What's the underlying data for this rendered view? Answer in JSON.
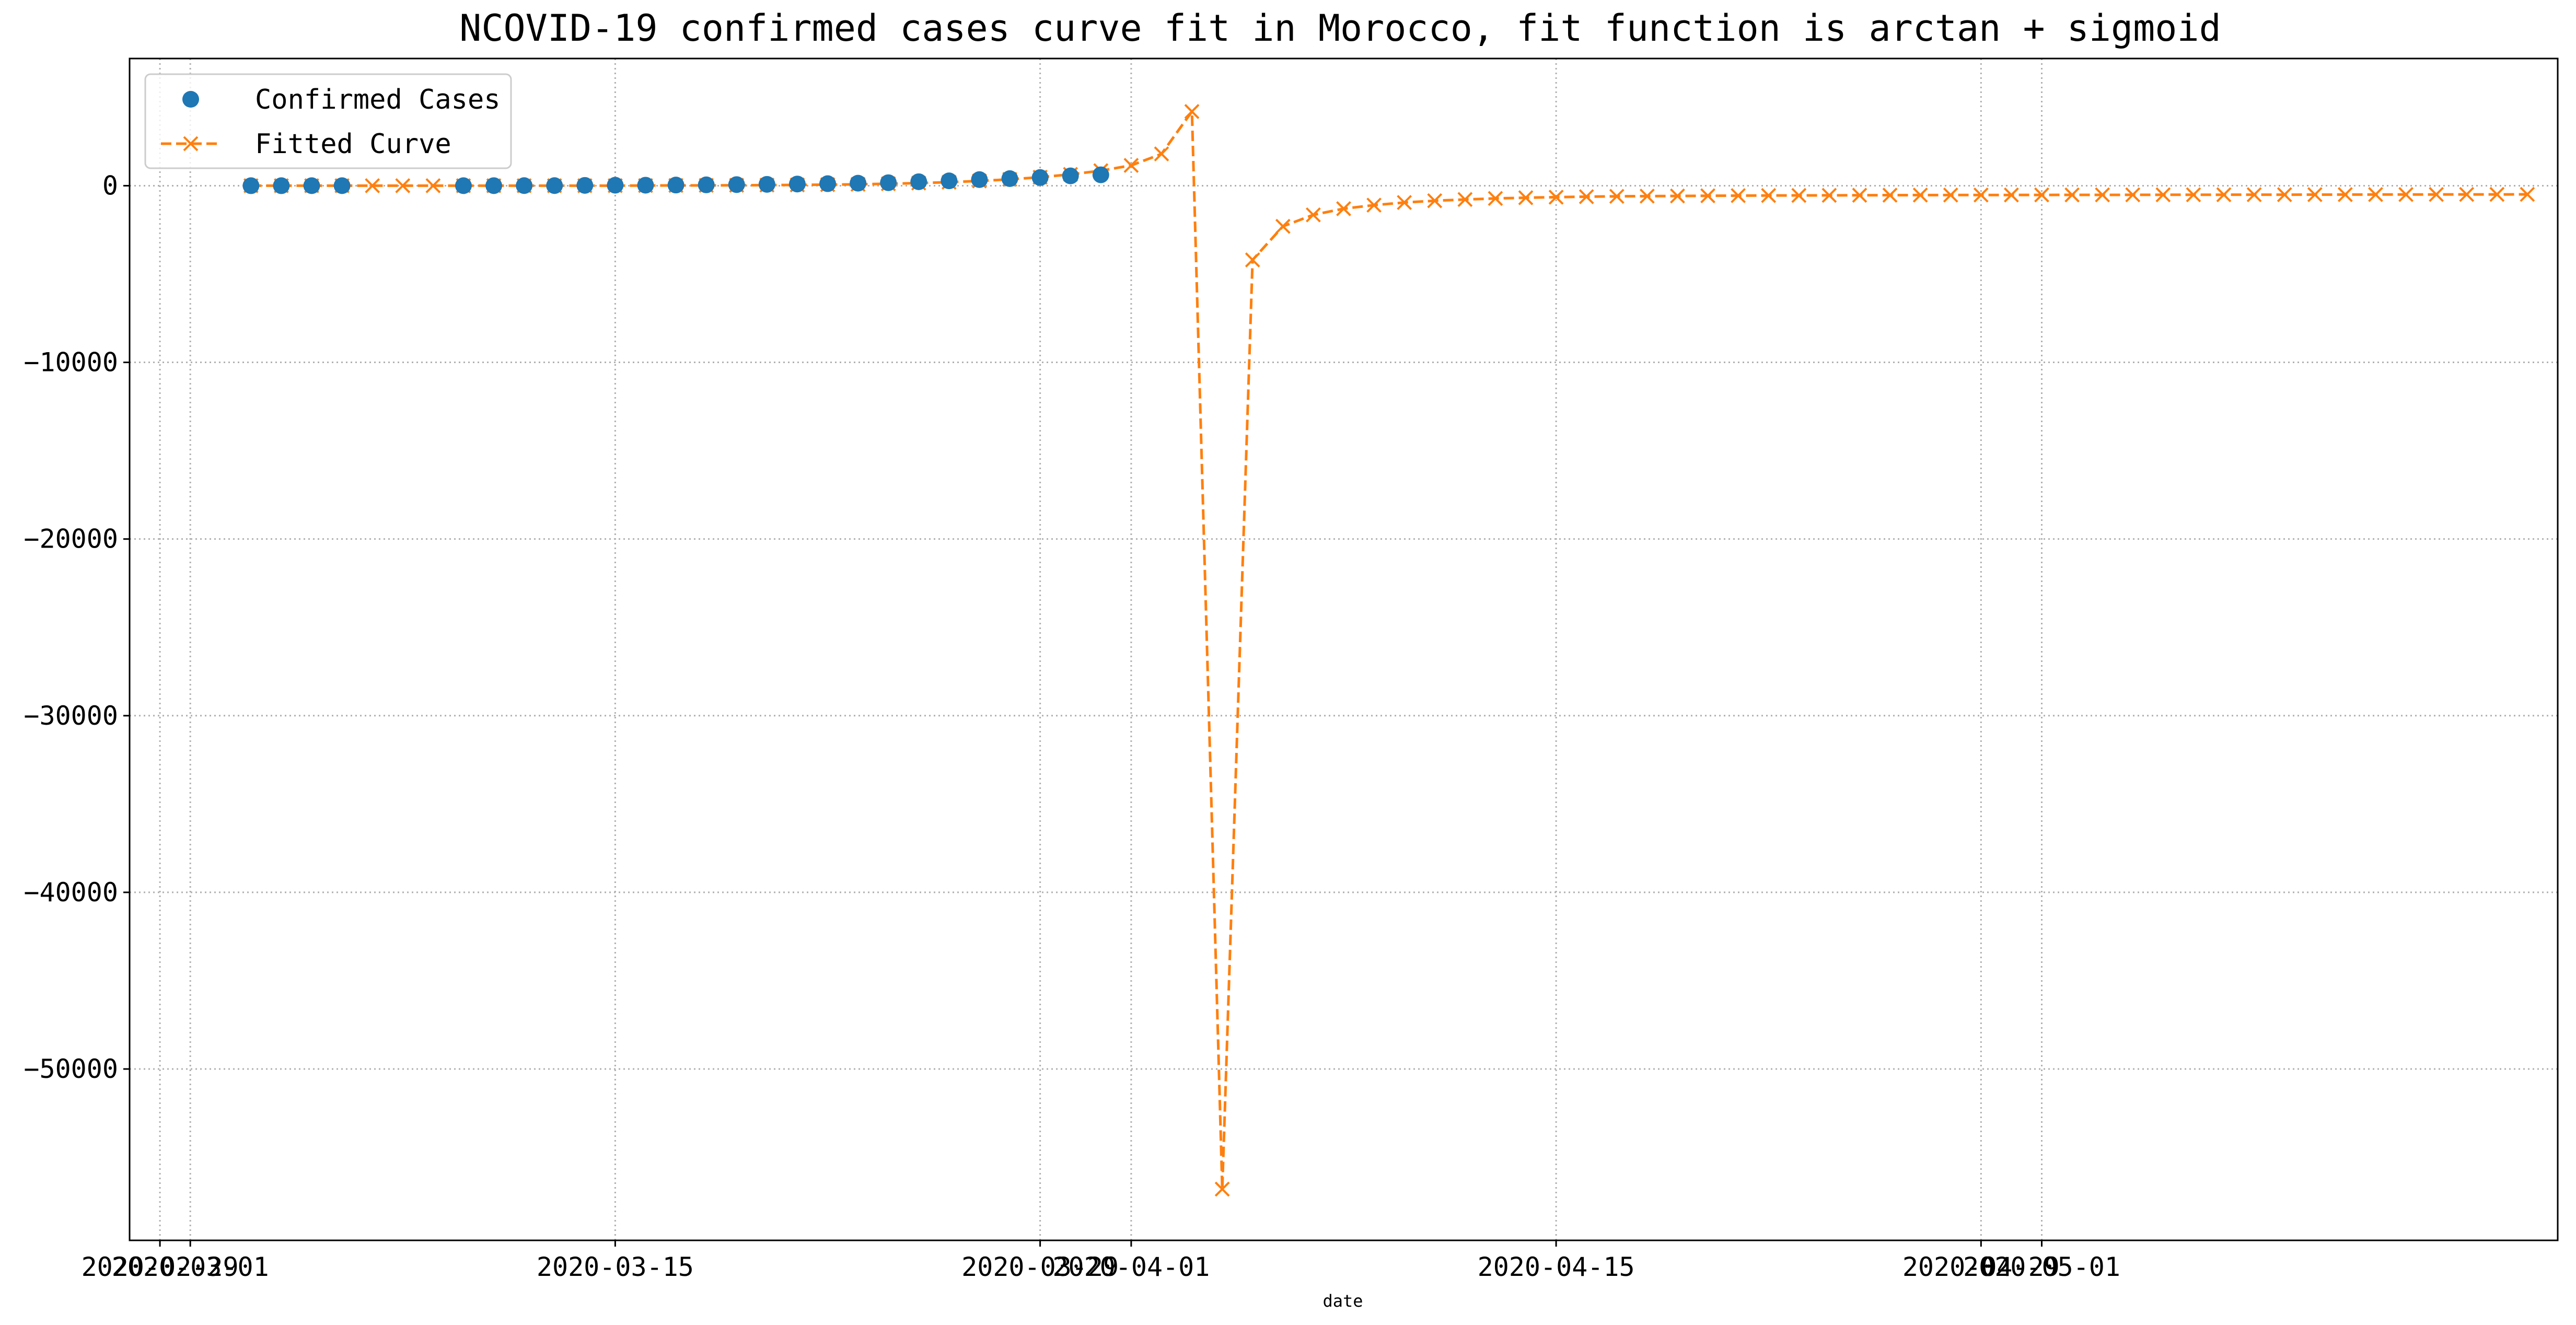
{
  "chart_data": {
    "type": "line",
    "title": "NCOVID-19 confirmed cases curve fit in Morocco, fit function is arctan + sigmoid",
    "xlabel": "date",
    "ylabel": "",
    "x_tick_labels": [
      "2020-02-29",
      "2020-03-01",
      "2020-03-15",
      "2020-03-29",
      "2020-04-01",
      "2020-04-15",
      "2020-04-29",
      "2020-05-01"
    ],
    "y_ticks": [
      0,
      -10000,
      -20000,
      -30000,
      -40000,
      -50000
    ],
    "y_tick_labels": [
      "0",
      "−10000",
      "−20000",
      "−30000",
      "−40000",
      "−50000"
    ],
    "xlim": [
      "2020-02-28",
      "2020-05-18"
    ],
    "ylim": [
      -59700,
      7200
    ],
    "grid": true,
    "legend_position": "upper left",
    "series": [
      {
        "name": "Confirmed Cases",
        "style": "markers",
        "marker": "circle",
        "color": "#1f77b4",
        "x": [
          "2020-03-03",
          "2020-03-04",
          "2020-03-05",
          "2020-03-06",
          "2020-03-10",
          "2020-03-11",
          "2020-03-12",
          "2020-03-13",
          "2020-03-14",
          "2020-03-15",
          "2020-03-16",
          "2020-03-17",
          "2020-03-18",
          "2020-03-19",
          "2020-03-20",
          "2020-03-21",
          "2020-03-22",
          "2020-03-23",
          "2020-03-24",
          "2020-03-25",
          "2020-03-26",
          "2020-03-27",
          "2020-03-28",
          "2020-03-29",
          "2020-03-30",
          "2020-03-31"
        ],
        "y": [
          1,
          1,
          2,
          2,
          2,
          3,
          5,
          6,
          18,
          28,
          29,
          38,
          49,
          63,
          77,
          96,
          115,
          143,
          170,
          225,
          275,
          345,
          402,
          463,
          556,
          617
        ]
      },
      {
        "name": "Fitted Curve",
        "style": "dashed-line",
        "marker": "x",
        "color": "#ff7f0e",
        "x": [
          "2020-03-03",
          "2020-03-04",
          "2020-03-05",
          "2020-03-06",
          "2020-03-07",
          "2020-03-08",
          "2020-03-09",
          "2020-03-10",
          "2020-03-11",
          "2020-03-12",
          "2020-03-13",
          "2020-03-14",
          "2020-03-15",
          "2020-03-16",
          "2020-03-17",
          "2020-03-18",
          "2020-03-19",
          "2020-03-20",
          "2020-03-21",
          "2020-03-22",
          "2020-03-23",
          "2020-03-24",
          "2020-03-25",
          "2020-03-26",
          "2020-03-27",
          "2020-03-28",
          "2020-03-29",
          "2020-03-30",
          "2020-03-31",
          "2020-04-01",
          "2020-04-02",
          "2020-04-03",
          "2020-04-04",
          "2020-04-05",
          "2020-04-06",
          "2020-04-07",
          "2020-04-08",
          "2020-04-09",
          "2020-04-10",
          "2020-04-11",
          "2020-04-12",
          "2020-04-13",
          "2020-04-14",
          "2020-04-15",
          "2020-04-16",
          "2020-04-17",
          "2020-04-18",
          "2020-04-19",
          "2020-04-20",
          "2020-04-21",
          "2020-04-22",
          "2020-04-23",
          "2020-04-24",
          "2020-04-25",
          "2020-04-26",
          "2020-04-27",
          "2020-04-28",
          "2020-04-29",
          "2020-04-30",
          "2020-05-01",
          "2020-05-02",
          "2020-05-03",
          "2020-05-04",
          "2020-05-05",
          "2020-05-06",
          "2020-05-07",
          "2020-05-08",
          "2020-05-09",
          "2020-05-10",
          "2020-05-11",
          "2020-05-12",
          "2020-05-13",
          "2020-05-14",
          "2020-05-15",
          "2020-05-16",
          "2020-05-17"
        ],
        "y": [
          0,
          0,
          0,
          0,
          0,
          0,
          0,
          0,
          0,
          0,
          0,
          0,
          5,
          10,
          15,
          20,
          25,
          35,
          45,
          60,
          80,
          110,
          150,
          200,
          270,
          360,
          480,
          640,
          850,
          1150,
          1800,
          4200,
          -56800,
          -4200,
          -2300,
          -1650,
          -1300,
          -1100,
          -950,
          -850,
          -780,
          -720,
          -680,
          -650,
          -620,
          -600,
          -590,
          -580,
          -570,
          -560,
          -555,
          -550,
          -545,
          -540,
          -535,
          -530,
          -528,
          -526,
          -524,
          -522,
          -520,
          -518,
          -516,
          -514,
          -512,
          -510,
          -508,
          -506,
          -504,
          -502,
          -500,
          -498,
          -496,
          -494,
          -492,
          -490
        ]
      }
    ]
  }
}
